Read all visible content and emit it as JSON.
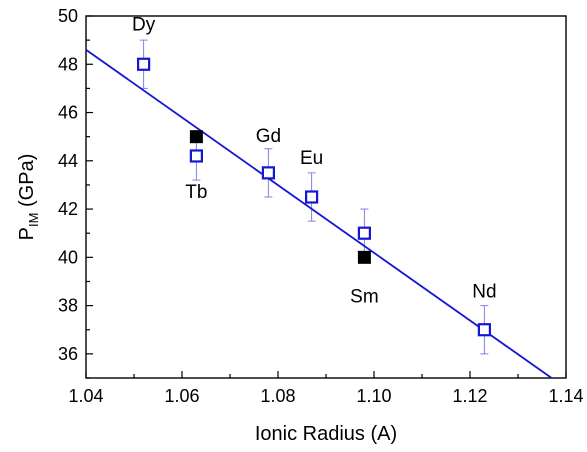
{
  "chart_data": {
    "type": "scatter",
    "xlabel": "Ionic Radius (A)",
    "ylabel_main": "P",
    "ylabel_sub": "IM",
    "ylabel_unit": " (GPa)",
    "xlim": [
      1.04,
      1.14
    ],
    "ylim": [
      35,
      50
    ],
    "x_ticks": [
      "1.04",
      "1.06",
      "1.08",
      "1.10",
      "1.12",
      "1.14"
    ],
    "y_ticks": [
      "36",
      "38",
      "40",
      "42",
      "44",
      "46",
      "48",
      "50"
    ],
    "grid": false,
    "legend": "none",
    "colors": {
      "open_series": "#1515d6",
      "filled_series": "#000000",
      "fit_line": "#1515d6"
    },
    "series": [
      {
        "marker": "open-square",
        "points": [
          {
            "label": "Dy",
            "x": 1.052,
            "y": 48.0,
            "err": 1.0
          },
          {
            "label": "Tb",
            "x": 1.063,
            "y": 44.2,
            "err": 1.0
          },
          {
            "label": "Gd",
            "x": 1.078,
            "y": 43.5,
            "err": 1.0
          },
          {
            "label": "Eu",
            "x": 1.087,
            "y": 42.5,
            "err": 1.0
          },
          {
            "label": "",
            "x": 1.098,
            "y": 41.0,
            "err": 1.0
          },
          {
            "label": "Nd",
            "x": 1.123,
            "y": 37.0,
            "err": 1.0
          }
        ]
      },
      {
        "marker": "filled-square",
        "points": [
          {
            "label": "",
            "x": 1.063,
            "y": 45.0
          },
          {
            "label": "Sm",
            "x": 1.098,
            "y": 40.0
          }
        ]
      }
    ],
    "fit_line": {
      "x": [
        1.04,
        1.137
      ],
      "y": [
        48.6,
        35.0
      ]
    }
  }
}
